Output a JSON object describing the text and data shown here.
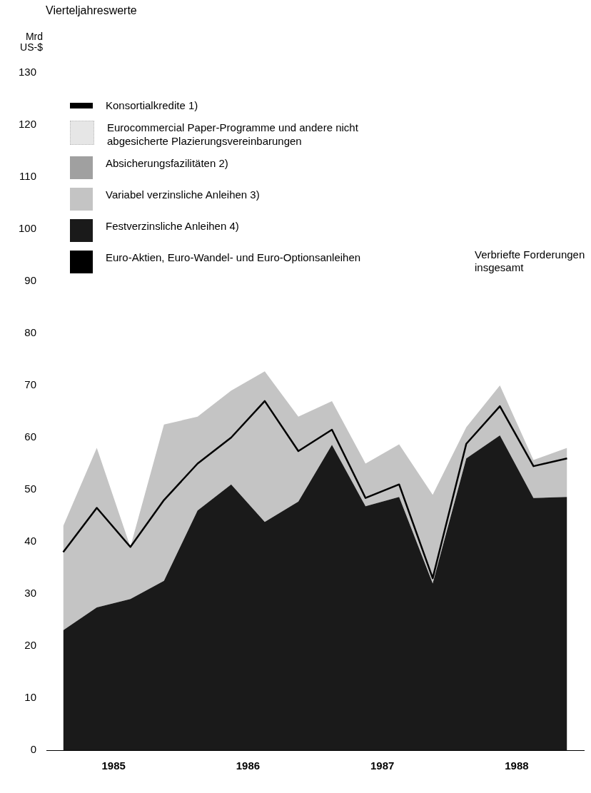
{
  "chart_data": {
    "type": "area",
    "title": "Vierteljahreswerte",
    "ylabel": "Mrd US-$",
    "stacked": true,
    "legend": "top left",
    "grid": false,
    "x": [
      1985.125,
      1985.375,
      1985.625,
      1985.875,
      1986.125,
      1986.375,
      1986.625,
      1986.875,
      1987.125,
      1987.375,
      1987.625,
      1987.875,
      1988.125,
      1988.375,
      1988.625,
      1988.875
    ],
    "xlim": [
      1985,
      1989
    ],
    "xticks": [
      {
        "value": 1985.5,
        "label": "1985"
      },
      {
        "value": 1986.5,
        "label": "1986"
      },
      {
        "value": 1987.5,
        "label": "1987"
      },
      {
        "value": 1988.5,
        "label": "1988"
      }
    ],
    "ylim": [
      0,
      130
    ],
    "yticks": [
      0,
      10,
      20,
      30,
      40,
      50,
      60,
      70,
      80,
      90,
      100,
      110,
      120,
      130
    ],
    "series": [
      {
        "name": "Euro-Aktien, Euro-Wandel- und Euro-Optionsanleihen",
        "color": "#000000",
        "values": [
          null,
          null,
          null,
          null,
          null,
          null,
          null,
          null,
          null,
          null,
          null,
          null,
          null,
          null,
          null,
          null
        ]
      },
      {
        "name": "Festverzinsliche Anleihen 4)",
        "color": "#1a1a1a",
        "values": [
          23,
          27.4,
          29,
          32.5,
          46,
          51,
          43.8,
          47.7,
          58.6,
          46.8,
          48.6,
          32,
          56,
          60.4,
          48.4,
          48.6
        ]
      },
      {
        "name": "Variabel verzinsliche Anleihen 3)",
        "color": "#c4c4c4",
        "values": [
          20,
          30.6,
          10,
          30,
          18,
          18,
          28.9,
          16.3,
          8.4,
          8.2,
          10.1,
          17,
          6,
          9.6,
          7.3,
          9.4
        ]
      },
      {
        "name": "Absicherungsfazilitäten 2)",
        "color": "#a0a0a0",
        "values": [
          null,
          null,
          null,
          null,
          null,
          null,
          null,
          null,
          null,
          null,
          null,
          null,
          null,
          null,
          null,
          null
        ]
      },
      {
        "name": "Eurocommercial Paper-Programme und andere nicht abgesicherte Plazierungsvereinbarungen",
        "color": "#e6e6e6",
        "values": [
          null,
          null,
          null,
          null,
          null,
          null,
          null,
          null,
          null,
          null,
          null,
          null,
          null,
          null,
          null,
          null
        ]
      },
      {
        "name": "Konsortialkredite 1)",
        "type": "line",
        "color": "#000000",
        "values": [
          38,
          46.5,
          39,
          48,
          55,
          60,
          67,
          57.4,
          61.5,
          48.4,
          51,
          33,
          58.8,
          66,
          54.5,
          56
        ]
      }
    ],
    "annotations": [
      "Verbriefte Forderungen insgesamt"
    ]
  }
}
